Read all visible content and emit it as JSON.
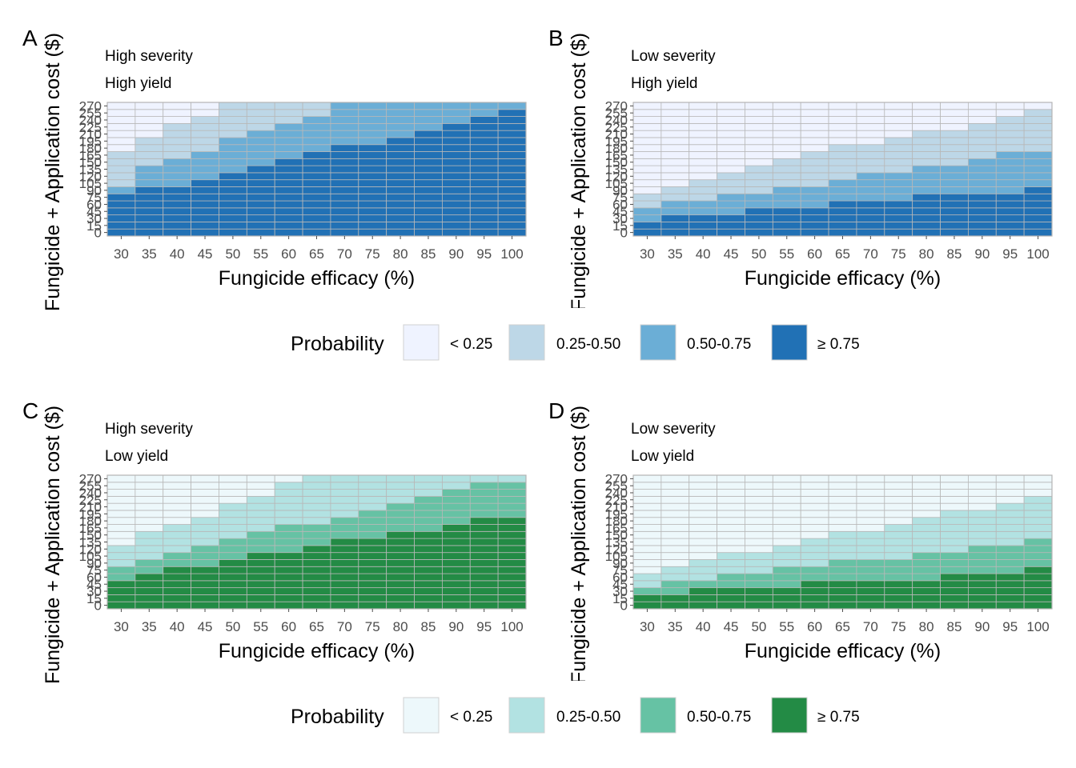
{
  "legends": [
    {
      "title": "Probability",
      "palette": "blue",
      "items": [
        {
          "label": "< 0.25",
          "color": "#eff3ff"
        },
        {
          "label": "0.25-0.50",
          "color": "#bdd7e7"
        },
        {
          "label": "0.50-0.75",
          "color": "#6baed6"
        },
        {
          "label": "≥ 0.75",
          "color": "#2171b5"
        }
      ]
    },
    {
      "title": "Probability",
      "palette": "green",
      "items": [
        {
          "label": "< 0.25",
          "color": "#edf8fb"
        },
        {
          "label": "0.25-0.50",
          "color": "#b2e2e2"
        },
        {
          "label": "0.50-0.75",
          "color": "#66c2a4"
        },
        {
          "label": "≥ 0.75",
          "color": "#238b45"
        }
      ]
    }
  ],
  "chart_data": [
    {
      "type": "heatmap",
      "panel": "A",
      "subtitle": [
        "High severity",
        "High yield"
      ],
      "xlabel": "Fungicide efficacy (%)",
      "ylabel": "Fungicide + Application cost ($)",
      "x": [
        30,
        35,
        40,
        45,
        50,
        55,
        60,
        65,
        70,
        75,
        80,
        85,
        90,
        95,
        100
      ],
      "y_step": 15,
      "ylim": [
        0,
        270
      ],
      "y_ticks": [
        0,
        15,
        30,
        45,
        60,
        75,
        90,
        105,
        120,
        135,
        150,
        165,
        180,
        195,
        210,
        225,
        240,
        255,
        270
      ],
      "x_ticks": [
        30,
        35,
        40,
        45,
        50,
        55,
        60,
        65,
        70,
        75,
        80,
        85,
        90,
        95,
        100
      ],
      "palette": "blue",
      "thresholds_cost": {
        "ge_0.75": [
          90,
          105,
          105,
          120,
          135,
          150,
          165,
          180,
          195,
          195,
          210,
          225,
          240,
          255,
          270
        ],
        "ge_0.50": [
          105,
          150,
          165,
          180,
          210,
          225,
          240,
          255,
          285,
          285,
          285,
          285,
          285,
          285,
          285
        ],
        "ge_0.25": [
          180,
          210,
          240,
          255,
          285,
          285,
          285,
          285,
          285,
          285,
          285,
          285,
          285,
          285,
          285
        ]
      }
    },
    {
      "type": "heatmap",
      "panel": "B",
      "subtitle": [
        "Low severity",
        "High yield"
      ],
      "xlabel": "Fungicide efficacy (%)",
      "ylabel": "Fungicide + Application cost ($)",
      "x": [
        30,
        35,
        40,
        45,
        50,
        55,
        60,
        65,
        70,
        75,
        80,
        85,
        90,
        95,
        100
      ],
      "y_step": 15,
      "ylim": [
        0,
        270
      ],
      "y_ticks": [
        0,
        15,
        30,
        45,
        60,
        75,
        90,
        105,
        120,
        135,
        150,
        165,
        180,
        195,
        210,
        225,
        240,
        255,
        270
      ],
      "x_ticks": [
        30,
        35,
        40,
        45,
        50,
        55,
        60,
        65,
        70,
        75,
        80,
        85,
        90,
        95,
        100
      ],
      "palette": "blue",
      "thresholds_cost": {
        "ge_0.75": [
          30,
          45,
          45,
          45,
          60,
          60,
          60,
          75,
          75,
          75,
          90,
          90,
          90,
          90,
          105
        ],
        "ge_0.50": [
          60,
          75,
          75,
          90,
          90,
          105,
          105,
          120,
          135,
          135,
          150,
          150,
          165,
          180,
          180
        ],
        "ge_0.25": [
          90,
          105,
          120,
          135,
          150,
          165,
          180,
          195,
          195,
          210,
          225,
          225,
          240,
          255,
          270
        ]
      }
    },
    {
      "type": "heatmap",
      "panel": "C",
      "subtitle": [
        "High severity",
        "Low yield"
      ],
      "xlabel": "Fungicide efficacy (%)",
      "ylabel": "Fungicide + Application cost ($)",
      "x": [
        30,
        35,
        40,
        45,
        50,
        55,
        60,
        65,
        70,
        75,
        80,
        85,
        90,
        95,
        100
      ],
      "y_step": 15,
      "ylim": [
        0,
        270
      ],
      "y_ticks": [
        0,
        15,
        30,
        45,
        60,
        75,
        90,
        105,
        120,
        135,
        150,
        165,
        180,
        195,
        210,
        225,
        240,
        255,
        270
      ],
      "x_ticks": [
        30,
        35,
        40,
        45,
        50,
        55,
        60,
        65,
        70,
        75,
        80,
        85,
        90,
        95,
        100
      ],
      "palette": "green",
      "thresholds_cost": {
        "ge_0.75": [
          60,
          75,
          90,
          90,
          105,
          120,
          120,
          135,
          150,
          150,
          165,
          165,
          180,
          195,
          195
        ],
        "ge_0.50": [
          90,
          105,
          120,
          135,
          150,
          165,
          180,
          180,
          195,
          210,
          225,
          240,
          255,
          270,
          270
        ],
        "ge_0.25": [
          135,
          165,
          180,
          195,
          225,
          240,
          270,
          285,
          285,
          285,
          285,
          285,
          285,
          285,
          285
        ]
      }
    },
    {
      "type": "heatmap",
      "panel": "D",
      "subtitle": [
        "Low severity",
        "Low yield"
      ],
      "xlabel": "Fungicide efficacy (%)",
      "ylabel": "Fungicide + Application cost ($)",
      "x": [
        30,
        35,
        40,
        45,
        50,
        55,
        60,
        65,
        70,
        75,
        80,
        85,
        90,
        95,
        100
      ],
      "y_step": 15,
      "ylim": [
        0,
        270
      ],
      "y_ticks": [
        0,
        15,
        30,
        45,
        60,
        75,
        90,
        105,
        120,
        135,
        150,
        165,
        180,
        195,
        210,
        225,
        240,
        255,
        270
      ],
      "x_ticks": [
        30,
        35,
        40,
        45,
        50,
        55,
        60,
        65,
        70,
        75,
        80,
        85,
        90,
        95,
        100
      ],
      "palette": "green",
      "thresholds_cost": {
        "ge_0.75": [
          30,
          30,
          45,
          45,
          45,
          45,
          60,
          60,
          60,
          60,
          60,
          75,
          75,
          75,
          90
        ],
        "ge_0.50": [
          45,
          60,
          60,
          75,
          75,
          90,
          90,
          105,
          105,
          105,
          120,
          120,
          135,
          135,
          150
        ],
        "ge_0.25": [
          75,
          90,
          105,
          120,
          120,
          135,
          150,
          165,
          165,
          180,
          195,
          210,
          210,
          225,
          240
        ]
      }
    }
  ]
}
